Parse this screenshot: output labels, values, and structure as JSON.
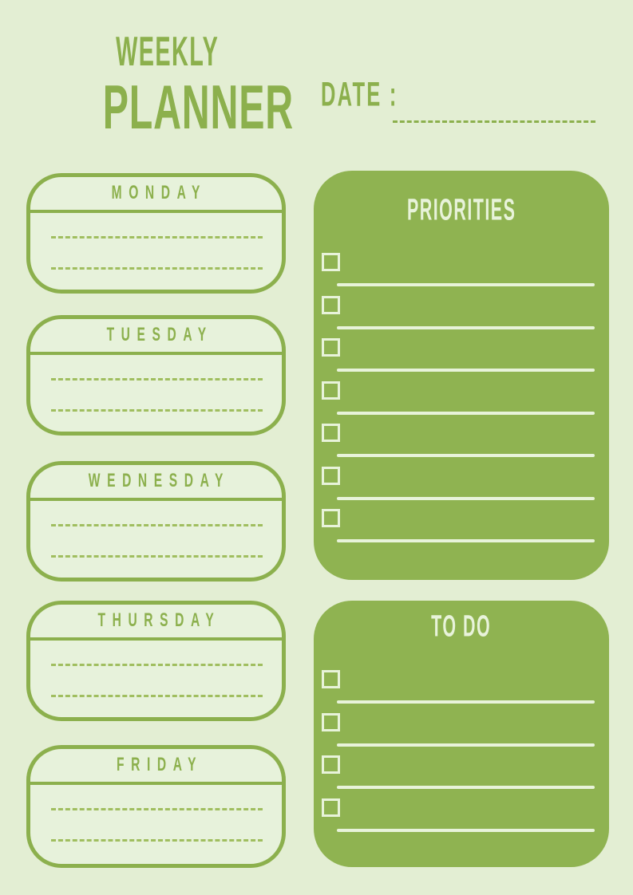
{
  "theme": {
    "bg": "#e3eed3",
    "accent": "#8cb04d",
    "panel": "#8fb351",
    "dash": "#a0be5f",
    "cream": "#e8f3da",
    "card_bg": "#e7f2db"
  },
  "header": {
    "title_line1": "WEEKLY",
    "title_line2": "PLANNER",
    "date_label": "DATE :",
    "date_value": ""
  },
  "days": [
    {
      "label": "MONDAY"
    },
    {
      "label": "TUESDAY"
    },
    {
      "label": "WEDNESDAY"
    },
    {
      "label": "THURSDAY"
    },
    {
      "label": "FRIDAY"
    }
  ],
  "priorities": {
    "title": "PRIORITIES",
    "item_count": 7
  },
  "todo": {
    "title": "TO DO",
    "item_count": 4
  }
}
